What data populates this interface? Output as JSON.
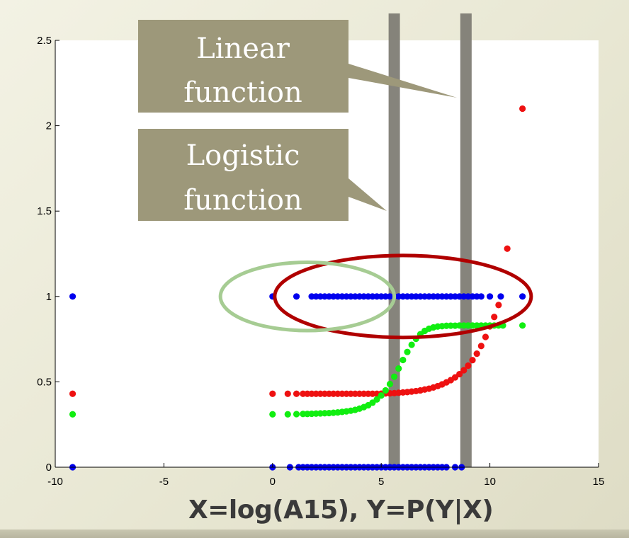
{
  "caption": "X=log(A15), Y=P(Y|X)",
  "callouts": [
    {
      "id": "linear",
      "lines": [
        "Linear",
        "function"
      ]
    },
    {
      "id": "logistic",
      "lines": [
        "Logistic",
        "function"
      ]
    }
  ],
  "colors": {
    "observed": "#0000ee",
    "linear_fit": "#ee1111",
    "logistic_fit": "#11ee11",
    "callout_fill": "#9d987a",
    "red_ellipse": "#b00000",
    "green_ellipse": "#a6cc93",
    "threshold_bar": "#7f7d75"
  },
  "chart_data": {
    "type": "scatter",
    "xlim": [
      -10,
      15
    ],
    "ylim": [
      0,
      2.5
    ],
    "x_ticks": [
      -10,
      -5,
      0,
      5,
      10,
      15
    ],
    "y_ticks": [
      0,
      0.5,
      1,
      1.5,
      2,
      2.5
    ],
    "x_tick_labels": [
      "-10",
      "-5",
      "0",
      "5",
      "10",
      "15"
    ],
    "y_tick_labels": [
      "0",
      "0.5",
      "1",
      "1.5",
      "2",
      "2.5"
    ],
    "grid": false,
    "threshold_lines_x": [
      5.6,
      8.9
    ],
    "series": [
      {
        "color": "blue",
        "points": [
          [
            -9.2,
            1.0
          ],
          [
            -9.2,
            0.0
          ],
          [
            0.0,
            1.0
          ],
          [
            1.1,
            1.0
          ],
          [
            1.8,
            1.0
          ],
          [
            2.0,
            1.0
          ],
          [
            2.2,
            1.0
          ],
          [
            2.4,
            1.0
          ],
          [
            2.6,
            1.0
          ],
          [
            2.8,
            1.0
          ],
          [
            3.0,
            1.0
          ],
          [
            3.2,
            1.0
          ],
          [
            3.4,
            1.0
          ],
          [
            3.6,
            1.0
          ],
          [
            3.8,
            1.0
          ],
          [
            4.0,
            1.0
          ],
          [
            4.2,
            1.0
          ],
          [
            4.4,
            1.0
          ],
          [
            4.6,
            1.0
          ],
          [
            4.8,
            1.0
          ],
          [
            5.0,
            1.0
          ],
          [
            5.2,
            1.0
          ],
          [
            5.4,
            1.0
          ],
          [
            5.6,
            1.0
          ],
          [
            5.8,
            1.0
          ],
          [
            6.0,
            1.0
          ],
          [
            6.2,
            1.0
          ],
          [
            6.4,
            1.0
          ],
          [
            6.6,
            1.0
          ],
          [
            6.8,
            1.0
          ],
          [
            7.0,
            1.0
          ],
          [
            7.2,
            1.0
          ],
          [
            7.4,
            1.0
          ],
          [
            7.6,
            1.0
          ],
          [
            7.8,
            1.0
          ],
          [
            8.0,
            1.0
          ],
          [
            8.2,
            1.0
          ],
          [
            8.4,
            1.0
          ],
          [
            8.6,
            1.0
          ],
          [
            8.8,
            1.0
          ],
          [
            9.0,
            1.0
          ],
          [
            9.2,
            1.0
          ],
          [
            9.4,
            1.0
          ],
          [
            9.6,
            1.0
          ],
          [
            10.0,
            1.0
          ],
          [
            10.5,
            1.0
          ],
          [
            11.5,
            1.0
          ],
          [
            0.0,
            0.0
          ],
          [
            0.8,
            0.0
          ],
          [
            1.2,
            0.0
          ],
          [
            1.4,
            0.0
          ],
          [
            1.6,
            0.0
          ],
          [
            1.8,
            0.0
          ],
          [
            2.0,
            0.0
          ],
          [
            2.2,
            0.0
          ],
          [
            2.4,
            0.0
          ],
          [
            2.6,
            0.0
          ],
          [
            2.8,
            0.0
          ],
          [
            3.0,
            0.0
          ],
          [
            3.2,
            0.0
          ],
          [
            3.4,
            0.0
          ],
          [
            3.6,
            0.0
          ],
          [
            3.8,
            0.0
          ],
          [
            4.0,
            0.0
          ],
          [
            4.2,
            0.0
          ],
          [
            4.4,
            0.0
          ],
          [
            4.6,
            0.0
          ],
          [
            4.8,
            0.0
          ],
          [
            5.0,
            0.0
          ],
          [
            5.2,
            0.0
          ],
          [
            5.4,
            0.0
          ],
          [
            5.6,
            0.0
          ],
          [
            5.8,
            0.0
          ],
          [
            6.0,
            0.0
          ],
          [
            6.2,
            0.0
          ],
          [
            6.4,
            0.0
          ],
          [
            6.6,
            0.0
          ],
          [
            6.8,
            0.0
          ],
          [
            7.0,
            0.0
          ],
          [
            7.2,
            0.0
          ],
          [
            7.4,
            0.0
          ],
          [
            7.6,
            0.0
          ],
          [
            7.8,
            0.0
          ],
          [
            8.0,
            0.0
          ],
          [
            8.4,
            0.0
          ],
          [
            8.7,
            0.0
          ]
        ]
      },
      {
        "color": "red",
        "points": [
          [
            -9.2,
            0.43
          ],
          [
            0.0,
            0.43
          ],
          [
            0.7,
            0.43
          ],
          [
            1.1,
            0.43
          ],
          [
            1.4,
            0.43
          ],
          [
            1.6,
            0.43
          ],
          [
            1.8,
            0.43
          ],
          [
            2.0,
            0.43
          ],
          [
            2.2,
            0.43
          ],
          [
            2.4,
            0.43
          ],
          [
            2.6,
            0.43
          ],
          [
            2.8,
            0.43
          ],
          [
            3.0,
            0.43
          ],
          [
            3.2,
            0.43
          ],
          [
            3.4,
            0.43
          ],
          [
            3.6,
            0.43
          ],
          [
            3.8,
            0.43
          ],
          [
            4.0,
            0.43
          ],
          [
            4.2,
            0.43
          ],
          [
            4.4,
            0.43
          ],
          [
            4.6,
            0.43
          ],
          [
            4.8,
            0.43
          ],
          [
            5.0,
            0.431
          ],
          [
            5.2,
            0.432
          ],
          [
            5.4,
            0.433
          ],
          [
            5.6,
            0.434
          ],
          [
            5.8,
            0.436
          ],
          [
            6.0,
            0.438
          ],
          [
            6.2,
            0.44
          ],
          [
            6.4,
            0.443
          ],
          [
            6.6,
            0.446
          ],
          [
            6.8,
            0.45
          ],
          [
            7.0,
            0.455
          ],
          [
            7.2,
            0.46
          ],
          [
            7.4,
            0.467
          ],
          [
            7.6,
            0.475
          ],
          [
            7.8,
            0.485
          ],
          [
            8.0,
            0.497
          ],
          [
            8.2,
            0.51
          ],
          [
            8.4,
            0.526
          ],
          [
            8.6,
            0.545
          ],
          [
            8.8,
            0.568
          ],
          [
            9.0,
            0.595
          ],
          [
            9.2,
            0.627
          ],
          [
            9.4,
            0.665
          ],
          [
            9.6,
            0.71
          ],
          [
            9.8,
            0.763
          ],
          [
            10.0,
            0.825
          ],
          [
            10.2,
            0.88
          ],
          [
            10.4,
            0.95
          ],
          [
            10.8,
            1.28
          ],
          [
            11.5,
            2.1
          ]
        ]
      },
      {
        "color": "green",
        "points": [
          [
            -9.2,
            0.31
          ],
          [
            0.0,
            0.31
          ],
          [
            0.7,
            0.31
          ],
          [
            1.1,
            0.311
          ],
          [
            1.4,
            0.312
          ],
          [
            1.6,
            0.312
          ],
          [
            1.8,
            0.313
          ],
          [
            2.0,
            0.314
          ],
          [
            2.2,
            0.315
          ],
          [
            2.4,
            0.316
          ],
          [
            2.6,
            0.317
          ],
          [
            2.8,
            0.319
          ],
          [
            3.0,
            0.321
          ],
          [
            3.2,
            0.324
          ],
          [
            3.4,
            0.327
          ],
          [
            3.6,
            0.331
          ],
          [
            3.8,
            0.336
          ],
          [
            4.0,
            0.343
          ],
          [
            4.2,
            0.352
          ],
          [
            4.4,
            0.363
          ],
          [
            4.6,
            0.378
          ],
          [
            4.8,
            0.397
          ],
          [
            5.0,
            0.42
          ],
          [
            5.2,
            0.45
          ],
          [
            5.4,
            0.487
          ],
          [
            5.6,
            0.53
          ],
          [
            5.8,
            0.578
          ],
          [
            6.0,
            0.628
          ],
          [
            6.2,
            0.675
          ],
          [
            6.4,
            0.717
          ],
          [
            6.6,
            0.752
          ],
          [
            6.8,
            0.779
          ],
          [
            7.0,
            0.798
          ],
          [
            7.2,
            0.811
          ],
          [
            7.4,
            0.819
          ],
          [
            7.6,
            0.824
          ],
          [
            7.8,
            0.826
          ],
          [
            8.0,
            0.828
          ],
          [
            8.2,
            0.829
          ],
          [
            8.4,
            0.829
          ],
          [
            8.6,
            0.83
          ],
          [
            8.8,
            0.83
          ],
          [
            9.0,
            0.83
          ],
          [
            9.2,
            0.83
          ],
          [
            9.4,
            0.83
          ],
          [
            9.6,
            0.83
          ],
          [
            9.8,
            0.83
          ],
          [
            10.0,
            0.83
          ],
          [
            10.2,
            0.83
          ],
          [
            10.4,
            0.83
          ],
          [
            10.6,
            0.83
          ],
          [
            11.5,
            0.83
          ]
        ]
      }
    ],
    "annotations": [
      {
        "shape": "ellipse",
        "color": "dark red",
        "center": [
          6.0,
          1.0
        ],
        "radius": [
          5.9,
          0.24
        ]
      },
      {
        "shape": "ellipse",
        "color": "light green",
        "center": [
          1.6,
          1.0
        ],
        "radius": [
          4.0,
          0.2
        ]
      }
    ]
  }
}
